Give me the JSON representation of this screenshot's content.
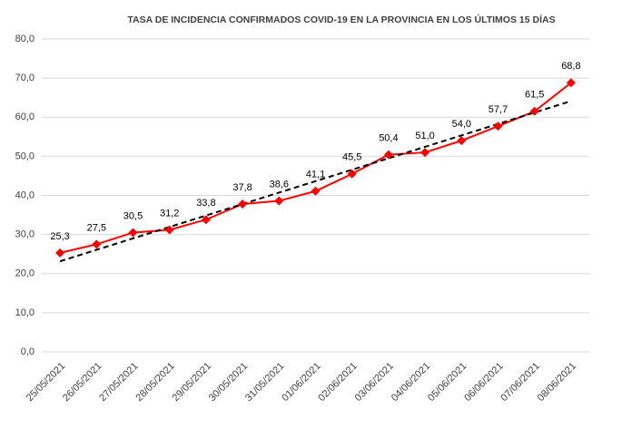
{
  "chart_data": {
    "type": "line",
    "title": "TASA DE INCIDENCIA  CONFIRMADOS COVID-19 EN LA PROVINCIA EN LOS ÚLTIMOS 15 DÍAS",
    "categories": [
      "25/05/2021",
      "26/05/2021",
      "27/05/2021",
      "28/05/2021",
      "29/05/2021",
      "30/05/2021",
      "31/05/2021",
      "01/06/2021",
      "02/06/2021",
      "03/06/2021",
      "04/06/2021",
      "05/06/2021",
      "06/06/2021",
      "07/06/2021",
      "08/06/2021"
    ],
    "values": [
      25.3,
      27.5,
      30.5,
      31.2,
      33.8,
      37.8,
      38.6,
      41.1,
      45.5,
      50.4,
      51.0,
      54.0,
      57.7,
      61.5,
      68.8
    ],
    "value_labels": [
      "25,3",
      "27,5",
      "30,5",
      "31,2",
      "33,8",
      "37,8",
      "38,6",
      "41,1",
      "45,5",
      "50,4",
      "51,0",
      "54,0",
      "57,7",
      "61,5",
      "68,8"
    ],
    "color": "#ff0000",
    "trendline": true,
    "trendline_color": "#000000",
    "ylim": [
      0,
      80
    ],
    "yticks": [
      {
        "value": 0,
        "label": "0,0"
      },
      {
        "value": 10,
        "label": "10,0"
      },
      {
        "value": 20,
        "label": "20,0"
      },
      {
        "value": 30,
        "label": "30,0"
      },
      {
        "value": 40,
        "label": "40,0"
      },
      {
        "value": 50,
        "label": "50,0"
      },
      {
        "value": 60,
        "label": "60,0"
      },
      {
        "value": 70,
        "label": "70,0"
      },
      {
        "value": 80,
        "label": "80,0"
      }
    ],
    "grid": true
  }
}
